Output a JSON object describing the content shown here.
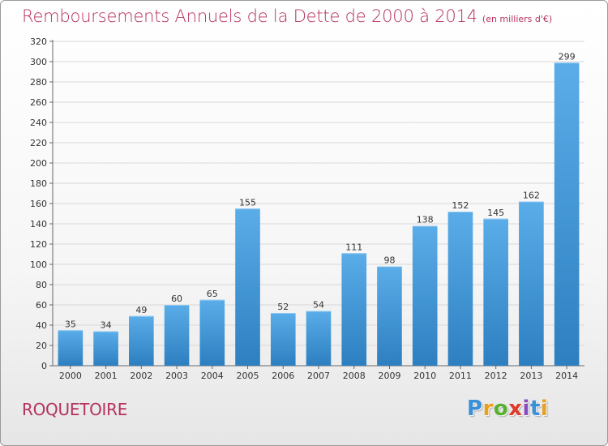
{
  "title": "Remboursements Annuels de la Dette de 2000 à 2014",
  "subtitle": "(en milliers d'€)",
  "commune": "ROQUETOIRE",
  "logo": {
    "letters": [
      "P",
      "r",
      "o",
      "x",
      "i",
      "t",
      "i"
    ],
    "colors": [
      "#3a8fd6",
      "#e8a020",
      "#58b030",
      "#e03a2a",
      "#8a4bc0",
      "#3a8fd6",
      "#e8a020"
    ],
    "icon": "proxiti-logo"
  },
  "colors": {
    "bar_top": "#5aade8",
    "bar_bottom": "#2d7fc0",
    "accent": "#b5325d"
  },
  "chart_data": {
    "type": "bar",
    "title": "Remboursements Annuels de la Dette de 2000 à 2014",
    "subtitle": "(en milliers d'€)",
    "xlabel": "",
    "ylabel": "",
    "categories": [
      "2000",
      "2001",
      "2002",
      "2003",
      "2004",
      "2005",
      "2006",
      "2007",
      "2008",
      "2009",
      "2010",
      "2011",
      "2012",
      "2013",
      "2014"
    ],
    "values": [
      35,
      34,
      49,
      60,
      65,
      155,
      52,
      54,
      111,
      98,
      138,
      152,
      145,
      162,
      299
    ],
    "ylim": [
      0,
      320
    ],
    "yticks": [
      0,
      20,
      40,
      60,
      80,
      100,
      120,
      140,
      160,
      180,
      200,
      220,
      240,
      260,
      280,
      300,
      320
    ],
    "grid": true,
    "legend": "none",
    "data_labels": true
  }
}
